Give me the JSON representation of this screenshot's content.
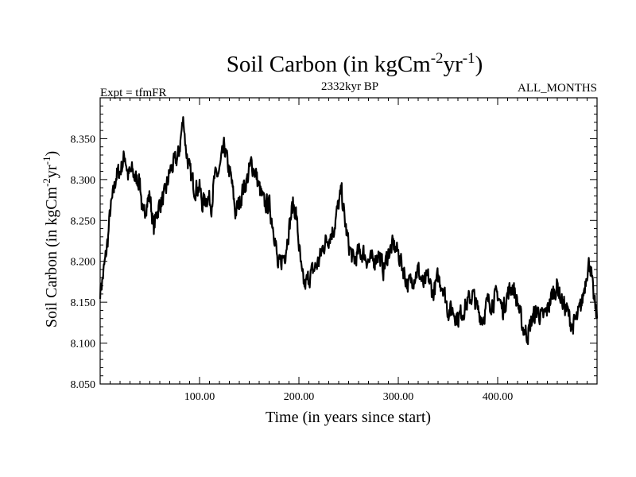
{
  "chart_data": {
    "type": "line",
    "title": {
      "base": "Soil Carbon (in kgCm",
      "exp1": "-2",
      "mid": "yr",
      "exp2": "-1",
      "close": ")"
    },
    "subtitle_left": "Expt = tfmFR",
    "subtitle_center": "2332kyr BP",
    "subtitle_right": "ALL_MONTHS",
    "xlabel": "Time (in years since start)",
    "ylabel": {
      "base": "Soil Carbon (in kgCm",
      "exp1": "-2",
      "mid": "yr",
      "exp2": "-1",
      "close": ")"
    },
    "xlim": [
      0,
      500
    ],
    "ylim": [
      8.05,
      8.4
    ],
    "x_ticks": [
      {
        "value": 100,
        "label": "100.00"
      },
      {
        "value": 200,
        "label": "200.00"
      },
      {
        "value": 300,
        "label": "300.00"
      },
      {
        "value": 400,
        "label": "400.00"
      }
    ],
    "y_ticks": [
      {
        "value": 8.05,
        "label": "8.050"
      },
      {
        "value": 8.1,
        "label": "8.100"
      },
      {
        "value": 8.15,
        "label": "8.150"
      },
      {
        "value": 8.2,
        "label": "8.200"
      },
      {
        "value": 8.25,
        "label": "8.250"
      },
      {
        "value": 8.3,
        "label": "8.300"
      },
      {
        "value": 8.35,
        "label": "8.350"
      }
    ],
    "series": [
      {
        "name": "Soil Carbon",
        "color": "#000000",
        "points": [
          [
            0,
            8.165
          ],
          [
            2,
            8.175
          ],
          [
            5,
            8.2
          ],
          [
            8,
            8.23
          ],
          [
            10,
            8.26
          ],
          [
            13,
            8.28
          ],
          [
            16,
            8.305
          ],
          [
            20,
            8.31
          ],
          [
            25,
            8.33
          ],
          [
            28,
            8.305
          ],
          [
            32,
            8.31
          ],
          [
            36,
            8.3
          ],
          [
            40,
            8.3
          ],
          [
            43,
            8.25
          ],
          [
            46,
            8.27
          ],
          [
            50,
            8.28
          ],
          [
            54,
            8.24
          ],
          [
            57,
            8.26
          ],
          [
            60,
            8.27
          ],
          [
            65,
            8.28
          ],
          [
            70,
            8.31
          ],
          [
            75,
            8.32
          ],
          [
            79,
            8.33
          ],
          [
            82,
            8.36
          ],
          [
            84,
            8.375
          ],
          [
            86,
            8.34
          ],
          [
            90,
            8.31
          ],
          [
            95,
            8.29
          ],
          [
            100,
            8.29
          ],
          [
            103,
            8.27
          ],
          [
            108,
            8.28
          ],
          [
            112,
            8.27
          ],
          [
            115,
            8.3
          ],
          [
            120,
            8.31
          ],
          [
            125,
            8.34
          ],
          [
            128,
            8.32
          ],
          [
            132,
            8.3
          ],
          [
            136,
            8.26
          ],
          [
            140,
            8.27
          ],
          [
            144,
            8.29
          ],
          [
            148,
            8.3
          ],
          [
            152,
            8.32
          ],
          [
            156,
            8.31
          ],
          [
            160,
            8.29
          ],
          [
            165,
            8.27
          ],
          [
            170,
            8.27
          ],
          [
            173,
            8.25
          ],
          [
            176,
            8.23
          ],
          [
            179,
            8.19
          ],
          [
            182,
            8.2
          ],
          [
            186,
            8.21
          ],
          [
            190,
            8.24
          ],
          [
            194,
            8.27
          ],
          [
            197,
            8.26
          ],
          [
            200,
            8.22
          ],
          [
            203,
            8.18
          ],
          [
            206,
            8.17
          ],
          [
            210,
            8.18
          ],
          [
            215,
            8.19
          ],
          [
            220,
            8.2
          ],
          [
            225,
            8.22
          ],
          [
            230,
            8.23
          ],
          [
            235,
            8.24
          ],
          [
            240,
            8.27
          ],
          [
            243,
            8.285
          ],
          [
            246,
            8.25
          ],
          [
            250,
            8.22
          ],
          [
            255,
            8.2
          ],
          [
            260,
            8.21
          ],
          [
            265,
            8.21
          ],
          [
            270,
            8.2
          ],
          [
            275,
            8.2
          ],
          [
            280,
            8.21
          ],
          [
            285,
            8.19
          ],
          [
            290,
            8.21
          ],
          [
            295,
            8.22
          ],
          [
            300,
            8.21
          ],
          [
            305,
            8.19
          ],
          [
            310,
            8.17
          ],
          [
            315,
            8.18
          ],
          [
            320,
            8.19
          ],
          [
            325,
            8.17
          ],
          [
            330,
            8.18
          ],
          [
            335,
            8.16
          ],
          [
            340,
            8.18
          ],
          [
            345,
            8.17
          ],
          [
            350,
            8.14
          ],
          [
            355,
            8.14
          ],
          [
            360,
            8.13
          ],
          [
            365,
            8.14
          ],
          [
            370,
            8.15
          ],
          [
            375,
            8.16
          ],
          [
            380,
            8.14
          ],
          [
            385,
            8.13
          ],
          [
            390,
            8.15
          ],
          [
            395,
            8.15
          ],
          [
            400,
            8.16
          ],
          [
            405,
            8.14
          ],
          [
            410,
            8.16
          ],
          [
            415,
            8.17
          ],
          [
            420,
            8.15
          ],
          [
            425,
            8.12
          ],
          [
            430,
            8.11
          ],
          [
            435,
            8.13
          ],
          [
            440,
            8.14
          ],
          [
            445,
            8.13
          ],
          [
            450,
            8.14
          ],
          [
            455,
            8.16
          ],
          [
            460,
            8.17
          ],
          [
            465,
            8.15
          ],
          [
            470,
            8.14
          ],
          [
            475,
            8.12
          ],
          [
            480,
            8.13
          ],
          [
            485,
            8.15
          ],
          [
            490,
            8.19
          ],
          [
            493,
            8.2
          ],
          [
            496,
            8.16
          ],
          [
            500,
            8.13
          ]
        ]
      }
    ]
  }
}
